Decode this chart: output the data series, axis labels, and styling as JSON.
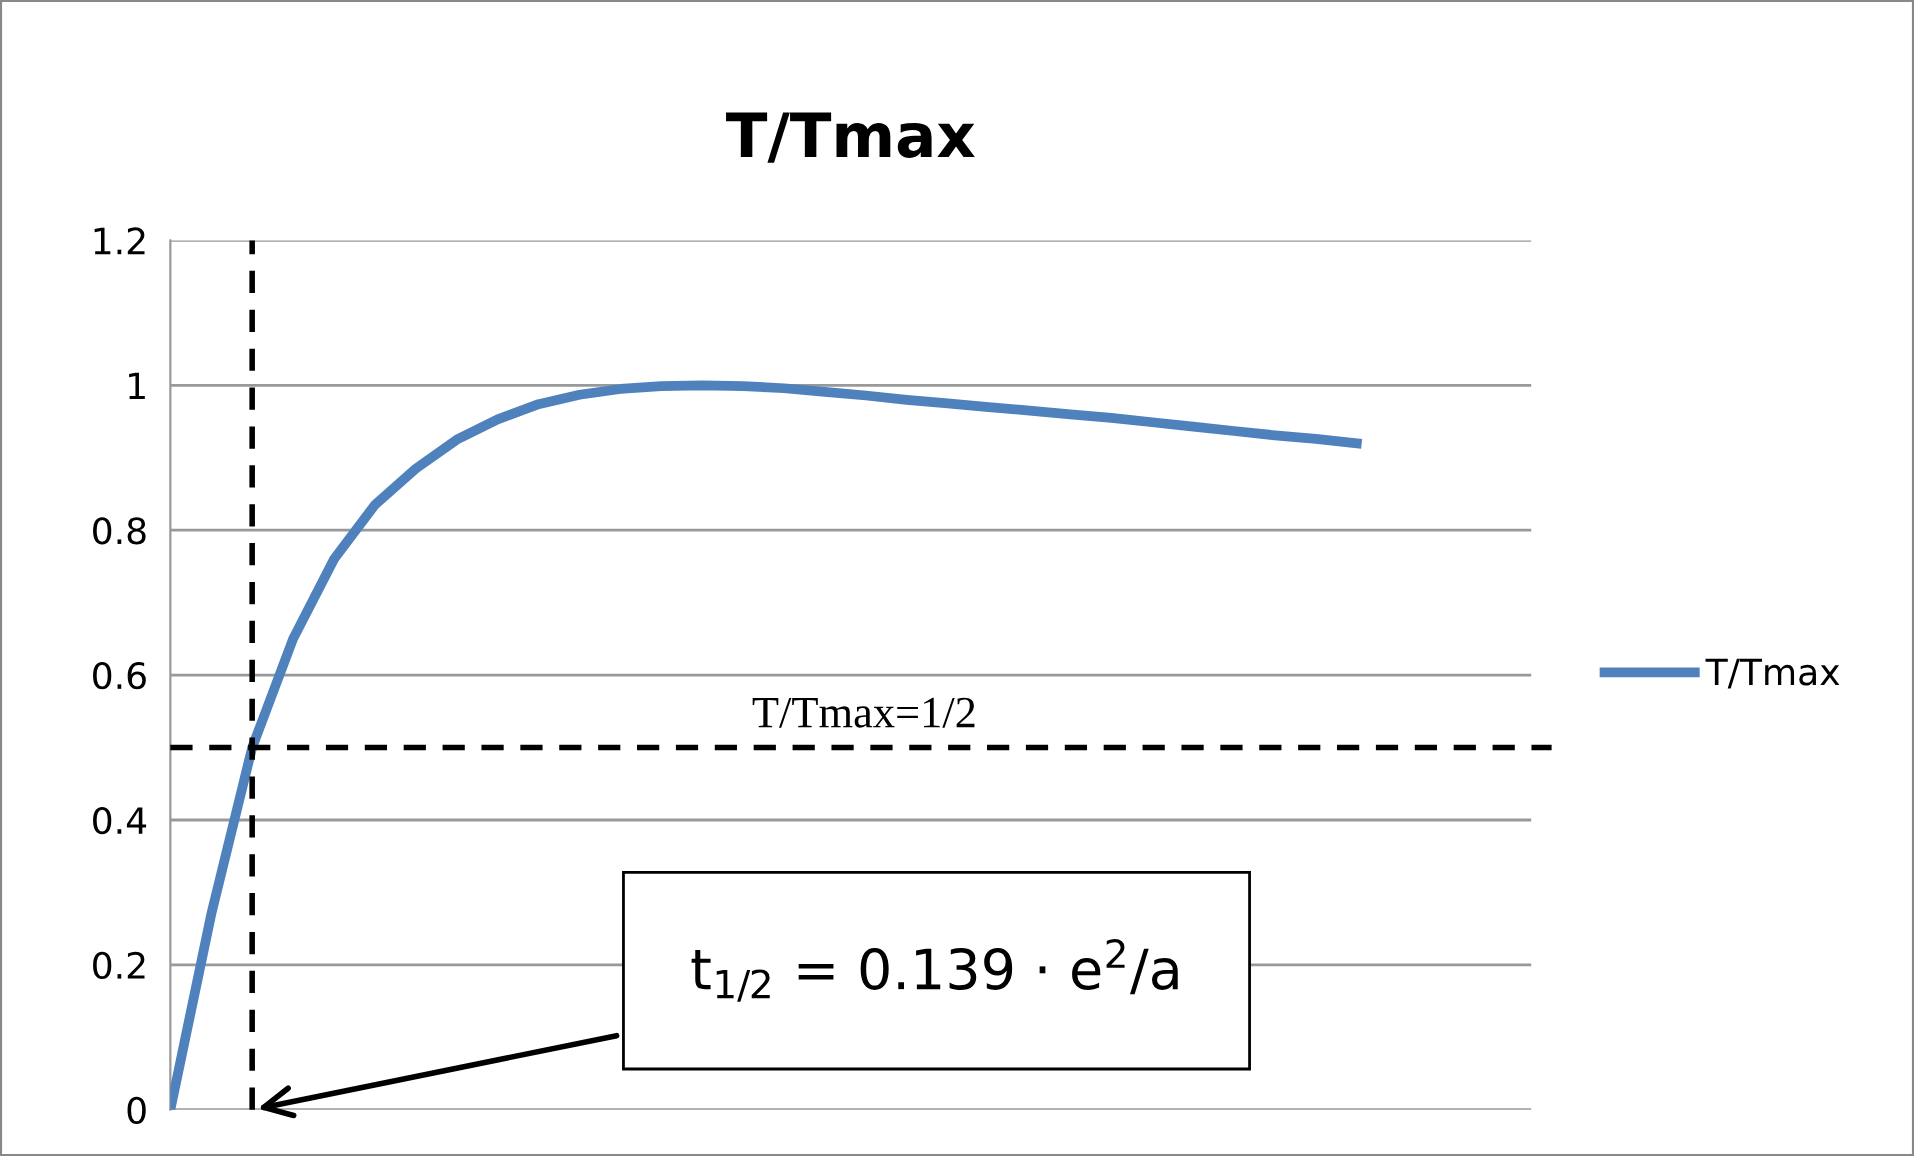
{
  "chart_data": {
    "type": "line",
    "title": "T/Tmax",
    "categories": [
      null,
      null,
      null,
      null,
      null,
      null,
      null,
      null,
      null,
      null,
      null,
      null,
      null,
      null,
      null,
      null,
      null,
      null,
      null,
      null,
      null,
      null,
      null,
      null,
      null,
      null,
      null,
      null,
      null,
      null
    ],
    "series": [
      {
        "name": "T/Tmax",
        "color": "#4f81bd",
        "values": [
          0,
          0.27,
          0.5,
          0.65,
          0.76,
          0.835,
          0.885,
          0.925,
          0.953,
          0.974,
          0.987,
          0.995,
          0.999,
          1.0,
          0.999,
          0.996,
          0.991,
          0.986,
          0.98,
          0.975,
          0.97,
          0.965,
          0.96,
          0.955,
          0.949,
          0.943,
          0.937,
          0.931,
          0.926,
          0.92
        ]
      }
    ],
    "ylim": [
      0,
      1.2
    ],
    "yticks": [
      0,
      0.2,
      0.4,
      0.6,
      0.8,
      1,
      1.2
    ],
    "grid": "y",
    "legend": "right",
    "marker": "none",
    "line_style": "solid",
    "tick_labels": "y",
    "ref_lines": [
      {
        "axis": "y",
        "value": 0.5,
        "label": "T/Tmax=1/2",
        "color": "#000000",
        "line_style": "dashed"
      }
    ],
    "annotations": [
      "t$_{1/2}$ = 0.139 · e$^{2}$/a"
    ]
  }
}
